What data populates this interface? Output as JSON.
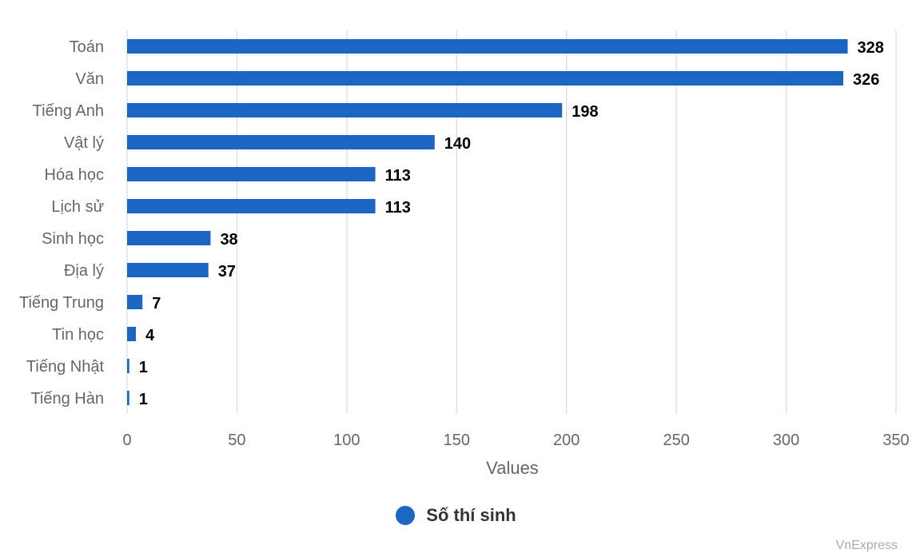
{
  "chart_data": {
    "type": "bar",
    "orientation": "horizontal",
    "categories": [
      "Toán",
      "Văn",
      "Tiếng Anh",
      "Vật lý",
      "Hóa học",
      "Lịch sử",
      "Sinh học",
      "Địa lý",
      "Tiếng Trung",
      "Tin học",
      "Tiếng Nhật",
      "Tiếng Hàn"
    ],
    "series": [
      {
        "name": "Số thí sinh",
        "values": [
          328,
          326,
          198,
          140,
          113,
          113,
          38,
          37,
          7,
          4,
          1,
          1
        ]
      }
    ],
    "xlabel": "Values",
    "ylabel": "",
    "xlim": [
      0,
      350
    ],
    "xticks": [
      0,
      50,
      100,
      150,
      200,
      250,
      300,
      350
    ],
    "grid": "vertical",
    "legend_position": "bottom",
    "data_labels": true,
    "bar_color": "#1a66c2"
  },
  "legend": {
    "label": "Số thí sinh"
  },
  "credit": "VnExpress"
}
